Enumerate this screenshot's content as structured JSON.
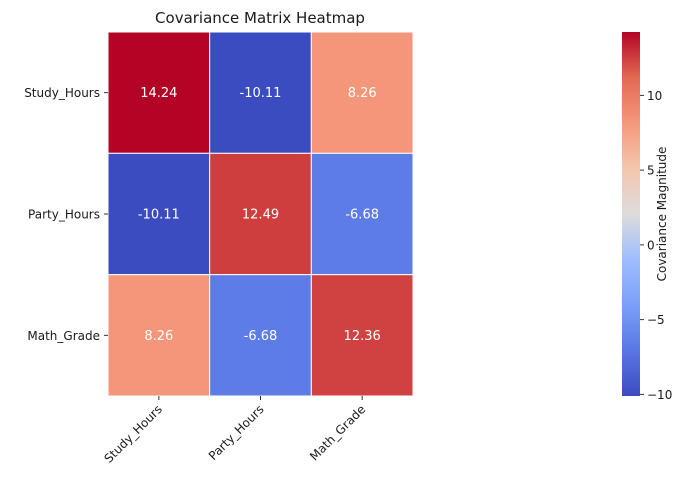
{
  "chart_data": {
    "type": "heatmap",
    "title": "Covariance Matrix Heatmap",
    "rows": [
      "Study_Hours",
      "Party_Hours",
      "Math_Grade"
    ],
    "columns": [
      "Study_Hours",
      "Party_Hours",
      "Math_Grade"
    ],
    "values": [
      [
        14.24,
        -10.11,
        8.26
      ],
      [
        -10.11,
        12.49,
        -6.68
      ],
      [
        8.26,
        -6.68,
        12.36
      ]
    ],
    "cell_labels": [
      [
        "14.24",
        "-10.11",
        "8.26"
      ],
      [
        "-10.11",
        "12.49",
        "-6.68"
      ],
      [
        "8.26",
        "-6.68",
        "12.36"
      ]
    ],
    "colormap": "coolwarm",
    "vmin": -10.11,
    "vmax": 14.24,
    "colorbar": {
      "label": "Covariance Magnitude",
      "ticks": [
        -10,
        -5,
        0,
        5,
        10
      ],
      "tick_labels": [
        "−10",
        "−5",
        "0",
        "5",
        "10"
      ]
    },
    "grid_line_color": "#ffffff"
  }
}
